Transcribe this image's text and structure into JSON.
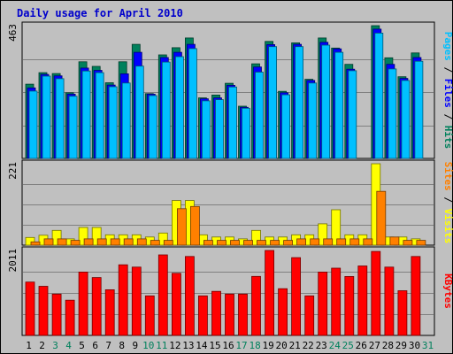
{
  "chart_data": {
    "type": "bar",
    "title": "Daily usage for April 2010",
    "days": [
      "1",
      "2",
      "3",
      "4",
      "5",
      "6",
      "7",
      "8",
      "9",
      "10",
      "11",
      "12",
      "13",
      "14",
      "15",
      "16",
      "17",
      "18",
      "19",
      "20",
      "21",
      "22",
      "23",
      "24",
      "25",
      "26",
      "27",
      "28",
      "29",
      "30",
      "31"
    ],
    "weekend_days": [
      "3",
      "4",
      "10",
      "11",
      "17",
      "18",
      "24",
      "25",
      "31"
    ],
    "panels": [
      {
        "id": "hits-files-pages",
        "max_label": "463",
        "ymax": 463,
        "series": [
          {
            "name": "Hits",
            "color": "#00805c",
            "values": [
              259,
              299,
              296,
              229,
              337,
              321,
              264,
              337,
              398,
              226,
              361,
              386,
              420,
              211,
              221,
              262,
              182,
              330,
              408,
              234,
              403,
              276,
              420,
              385,
              328,
              null,
              463,
              351,
              285,
              368,
              null
            ]
          },
          {
            "name": "Files",
            "color": "#0000ff",
            "values": [
              246,
              293,
              288,
              224,
              315,
              307,
              256,
              295,
              370,
              224,
              352,
              370,
              398,
              208,
              211,
              255,
              178,
              319,
              397,
              229,
              398,
              272,
              405,
              382,
              311,
              null,
              451,
              328,
              279,
              352,
              null
            ]
          },
          {
            "name": "Pages",
            "color": "#00c0ff",
            "values": [
              235,
              287,
              278,
              217,
              305,
              299,
              250,
              263,
              322,
              219,
              336,
              355,
              383,
              201,
              205,
              249,
              175,
              301,
              390,
              222,
              390,
              263,
              395,
              370,
              306,
              null,
              437,
              312,
              272,
              339,
              null
            ]
          }
        ],
        "right_label_parts": [
          {
            "text": "Pages",
            "color": "#00c0ff"
          },
          {
            "text": " / ",
            "color": "#000000"
          },
          {
            "text": "Files",
            "color": "#0000ff"
          },
          {
            "text": " / ",
            "color": "#000000"
          },
          {
            "text": "Hits",
            "color": "#00805c"
          }
        ]
      },
      {
        "id": "visits-sites",
        "max_label": "221",
        "ymax": 221,
        "series": [
          {
            "name": "Visits",
            "color": "#ffff00",
            "values": [
              21,
              27,
              40,
              17,
              48,
              48,
              28,
              28,
              28,
              22,
              33,
              121,
              121,
              28,
              22,
              22,
              17,
              40,
              22,
              22,
              28,
              28,
              58,
              96,
              28,
              28,
              221,
              22,
              22,
              17,
              null
            ]
          },
          {
            "name": "Sites",
            "color": "#ff8000",
            "values": [
              9,
              17,
              17,
              13,
              17,
              17,
              17,
              17,
              17,
              13,
              13,
              99,
              105,
              13,
              13,
              13,
              13,
              13,
              13,
              13,
              17,
              17,
              17,
              17,
              17,
              17,
              146,
              22,
              13,
              13,
              null
            ]
          }
        ],
        "right_label_parts": [
          {
            "text": "Sites",
            "color": "#ff8000"
          },
          {
            "text": " / ",
            "color": "#000000"
          },
          {
            "text": "Visits",
            "color": "#ffff00"
          }
        ]
      },
      {
        "id": "kbytes",
        "max_label": "2011",
        "ymax": 2011,
        "series": [
          {
            "name": "KBytes",
            "color": "#ff0000",
            "values": [
              1263,
              1163,
              978,
              834,
              1500,
              1369,
              1080,
              1671,
              1618,
              937,
              1907,
              1470,
              1868,
              937,
              1043,
              978,
              978,
              1397,
              2011,
              1107,
              1842,
              937,
              1500,
              1592,
              1395,
              1645,
              1987,
              1618,
              1058,
              1868,
              null
            ]
          }
        ],
        "right_label_parts": [
          {
            "text": "KBytes",
            "color": "#ff0000"
          }
        ]
      }
    ]
  }
}
